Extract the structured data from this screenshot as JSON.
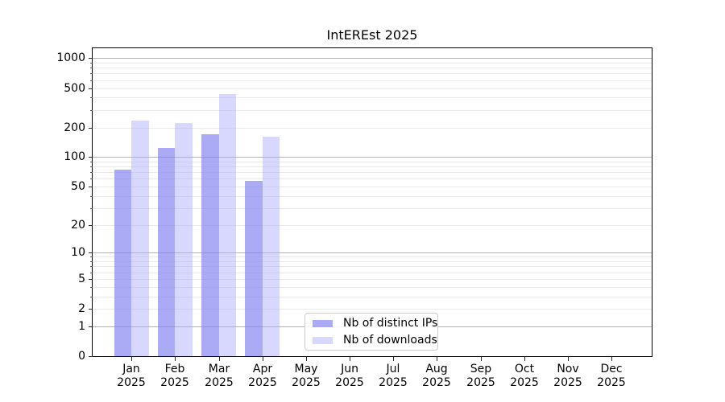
{
  "chart_data": {
    "type": "bar",
    "title": "IntEREst 2025",
    "categories": [
      "Jan",
      "Feb",
      "Mar",
      "Apr",
      "May",
      "Jun",
      "Jul",
      "Aug",
      "Sep",
      "Oct",
      "Nov",
      "Dec"
    ],
    "x_tick_second_line": "2025",
    "series": [
      {
        "name": "Nb of distinct IPs",
        "color": "rgba(130,130,240,0.68)",
        "color_hex_on_white": "#aaaaf5",
        "values": [
          75,
          125,
          170,
          57,
          0,
          0,
          0,
          0,
          0,
          0,
          0,
          0
        ]
      },
      {
        "name": "Nb of downloads",
        "color": "rgba(173,173,255,0.47)",
        "color_hex_on_white": "#d9d9ff",
        "values": [
          235,
          220,
          435,
          160,
          0,
          0,
          0,
          0,
          0,
          0,
          0,
          0
        ]
      }
    ],
    "yscale": "log1p",
    "ylim": [
      0,
      1260
    ],
    "ytick_labels": [
      "0",
      "1",
      "2",
      "5",
      "10",
      "20",
      "50",
      "100",
      "200",
      "500",
      "1000"
    ],
    "ytick_values": [
      0,
      1,
      2,
      5,
      10,
      20,
      50,
      100,
      200,
      500,
      1000
    ],
    "major_grid_values": [
      1,
      10,
      100,
      1000
    ],
    "minor_grid_values": [
      2,
      3,
      4,
      5,
      6,
      7,
      8,
      9,
      20,
      30,
      40,
      50,
      60,
      70,
      80,
      90,
      200,
      300,
      400,
      500,
      600,
      700,
      800,
      900
    ],
    "grid": true,
    "legend_position": "lower center",
    "colors": {
      "major_grid": "#b2b2b2",
      "minor_grid": "#e9e9e9",
      "spine": "#000000",
      "text": "#000000",
      "legend_border": "#cccccc"
    }
  }
}
